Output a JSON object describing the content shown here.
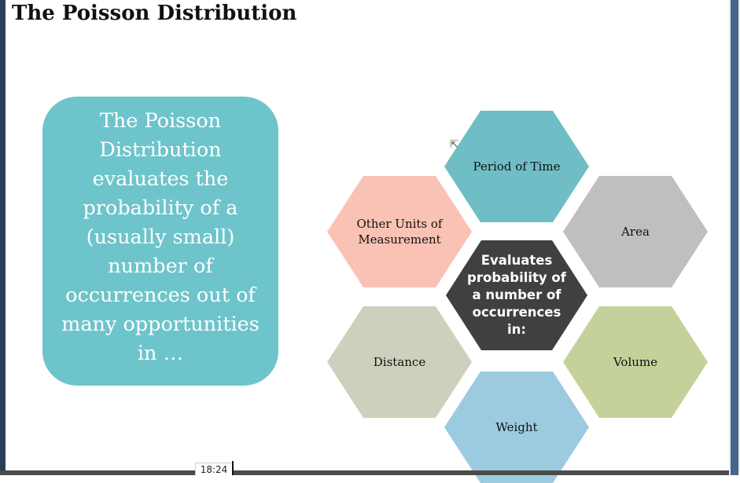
{
  "slide": {
    "title": "The Poisson Distribution",
    "info_text": "The Poisson Distribution evaluates the probability of a (usually small) number of occurrences out of many opportunities in …"
  },
  "diagram": {
    "center": "Evaluates probability of a number of occurrences in:",
    "items": [
      {
        "label": "Period of Time",
        "color": "#6fbec6"
      },
      {
        "label": "Area",
        "color": "#bfbfbf"
      },
      {
        "label": "Volume",
        "color": "#c5d19a"
      },
      {
        "label": "Weight",
        "color": "#9ccbe0"
      },
      {
        "label": "Distance",
        "color": "#cfcfbd"
      },
      {
        "label": "Other Units of Measurement",
        "color": "#f9c2b4"
      }
    ],
    "center_color": "#404040"
  },
  "player": {
    "timestamp": "18:24"
  }
}
